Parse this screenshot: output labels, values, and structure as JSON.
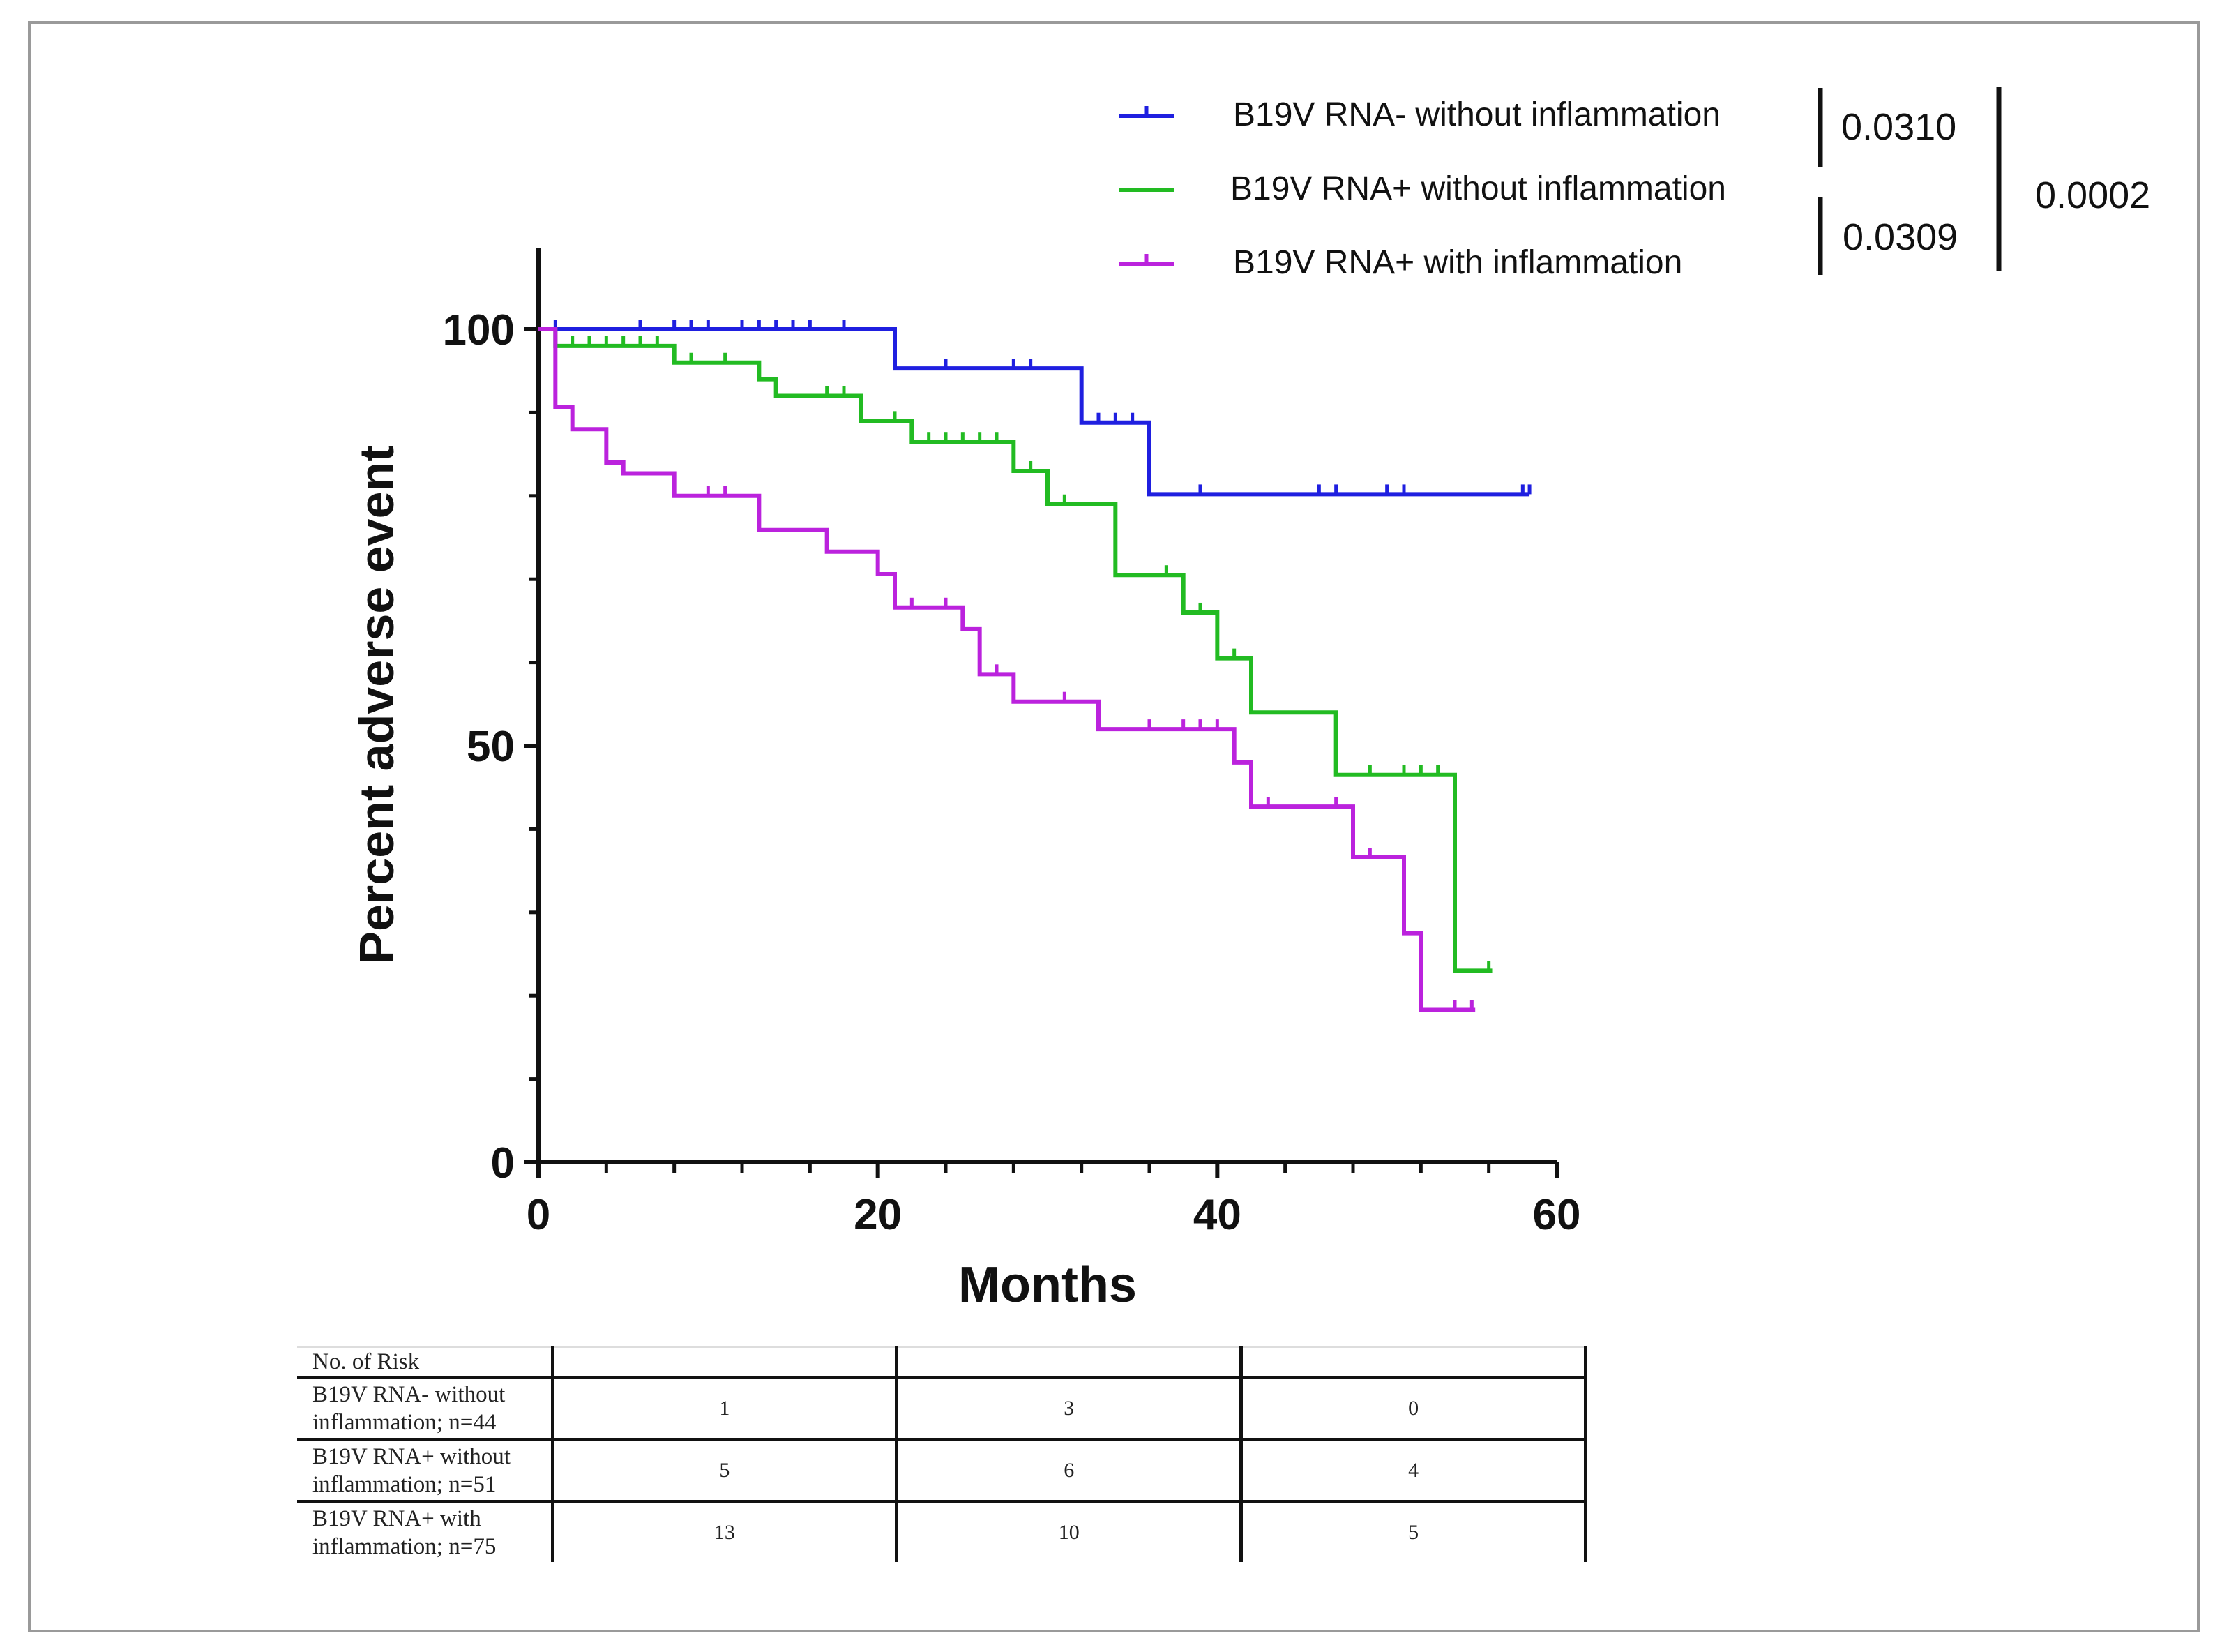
{
  "chart_data": {
    "type": "line",
    "subtype": "kaplan-meier",
    "xlabel": "Months",
    "ylabel": "Percent adverse event",
    "xlim": [
      0,
      60
    ],
    "ylim": [
      0,
      110
    ],
    "xticks": [
      0,
      20,
      40,
      60
    ],
    "yticks": [
      0,
      50,
      100
    ],
    "xtick_labels": [
      "0",
      "20",
      "40",
      "60"
    ],
    "ytick_labels": [
      "0",
      "50",
      "100"
    ],
    "x_minor_step": 4,
    "y_minor_step": 10,
    "grid": false,
    "legend_position": "top-right",
    "series": [
      {
        "name": "B19V RNA- without inflammation",
        "color": "#1f1fe0",
        "steps": [
          [
            0,
            100
          ],
          [
            21,
            95.3
          ],
          [
            32,
            88.8
          ],
          [
            36,
            80.2
          ],
          [
            58.4,
            80.2
          ]
        ],
        "censor": [
          1,
          6,
          8,
          9,
          10,
          12,
          13,
          14,
          15,
          16,
          18,
          24,
          28,
          29,
          33,
          34,
          35,
          39,
          46,
          47,
          50,
          51,
          58,
          58.4
        ]
      },
      {
        "name": "B19V RNA+ without inflammation",
        "color": "#22bb22",
        "steps": [
          [
            0,
            100
          ],
          [
            1,
            98
          ],
          [
            8,
            96
          ],
          [
            13,
            94
          ],
          [
            14,
            92
          ],
          [
            19,
            89
          ],
          [
            22,
            86.5
          ],
          [
            28,
            83
          ],
          [
            30,
            79
          ],
          [
            34,
            70.5
          ],
          [
            38,
            66
          ],
          [
            40,
            60.5
          ],
          [
            42,
            54
          ],
          [
            47,
            46.5
          ],
          [
            54,
            23
          ],
          [
            56.2,
            23
          ]
        ],
        "censor": [
          2,
          3,
          4,
          5,
          6,
          7,
          9,
          11,
          17,
          18,
          21,
          23,
          24,
          25,
          26,
          27,
          29,
          31,
          37,
          39,
          41,
          49,
          51,
          52,
          53,
          56
        ]
      },
      {
        "name": "B19V RNA+ with inflammation",
        "color": "#bb22dd",
        "steps": [
          [
            0,
            100
          ],
          [
            1,
            90.7
          ],
          [
            2,
            88
          ],
          [
            4,
            84
          ],
          [
            5,
            82.7
          ],
          [
            8,
            80
          ],
          [
            13,
            75.9
          ],
          [
            17,
            73.3
          ],
          [
            20,
            70.6
          ],
          [
            21,
            66.6
          ],
          [
            25,
            64
          ],
          [
            26,
            58.6
          ],
          [
            28,
            55.3
          ],
          [
            33,
            52
          ],
          [
            41,
            48
          ],
          [
            42,
            42.7
          ],
          [
            48,
            36.6
          ],
          [
            51,
            27.5
          ],
          [
            52,
            18.3
          ],
          [
            55.2,
            18.3
          ]
        ],
        "censor": [
          10,
          11,
          22,
          24,
          27,
          31,
          36,
          38,
          39,
          40,
          43,
          47,
          49,
          54,
          55
        ]
      }
    ],
    "p_values": {
      "blue_vs_green": "0.0310",
      "green_vs_purple": "0.0309",
      "blue_vs_purple": "0.0002"
    }
  },
  "risk_table": {
    "header": "No. of Risk",
    "rows": [
      {
        "label_line1": "B19V RNA- without",
        "label_line2": "inflammation; n=44",
        "values": [
          "1",
          "3",
          "0"
        ]
      },
      {
        "label_line1": "B19V RNA+ without",
        "label_line2": "inflammation; n=51",
        "values": [
          "5",
          "6",
          "4"
        ]
      },
      {
        "label_line1": "B19V RNA+ with",
        "label_line2": "inflammation; n=75",
        "values": [
          "13",
          "10",
          "5"
        ]
      }
    ]
  }
}
